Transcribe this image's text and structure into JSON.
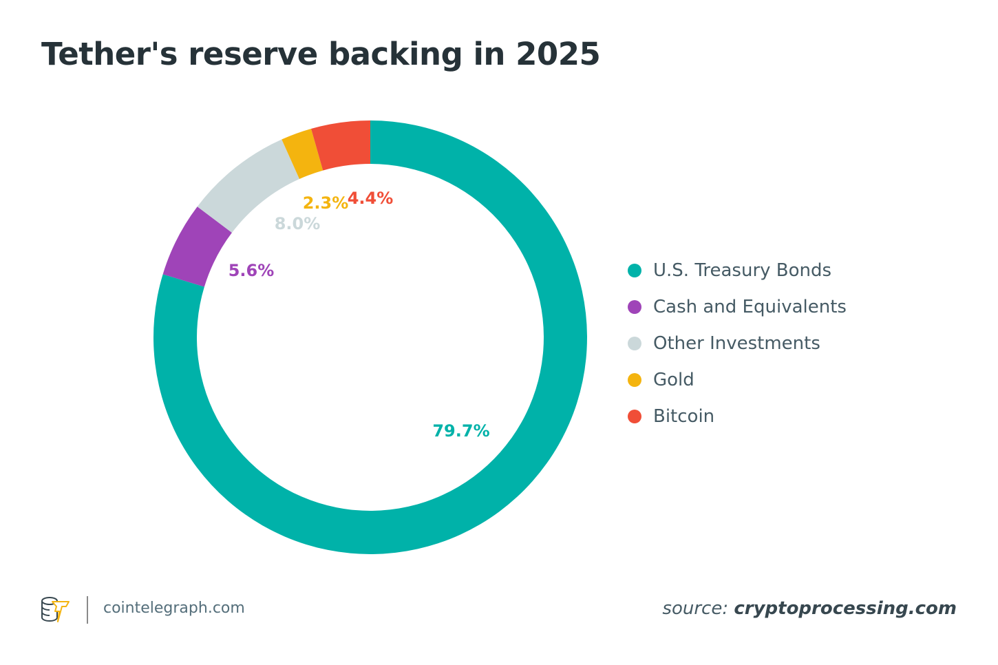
{
  "chart_data": {
    "type": "pie",
    "variant": "donut",
    "title": "Tether's reserve backing in 2025",
    "start": "top, clockwise",
    "legend_position": "right",
    "slices": [
      {
        "name": "U.S. Treasury Bonds",
        "value": 79.7,
        "label": "79.7%",
        "color": "#00b2a9"
      },
      {
        "name": "Cash and Equivalents",
        "value": 5.6,
        "label": "5.6%",
        "color": "#9f44b8"
      },
      {
        "name": "Other Investments",
        "value": 8.0,
        "label": "8.0%",
        "color": "#cbd8da"
      },
      {
        "name": "Gold",
        "value": 2.3,
        "label": "2.3%",
        "color": "#f4b40f"
      },
      {
        "name": "Bitcoin",
        "value": 4.4,
        "label": "4.4%",
        "color": "#f04e37"
      }
    ]
  },
  "footer": {
    "site": "cointelegraph.com",
    "source_prefix": "source:",
    "source": "cryptoprocessing.com"
  }
}
